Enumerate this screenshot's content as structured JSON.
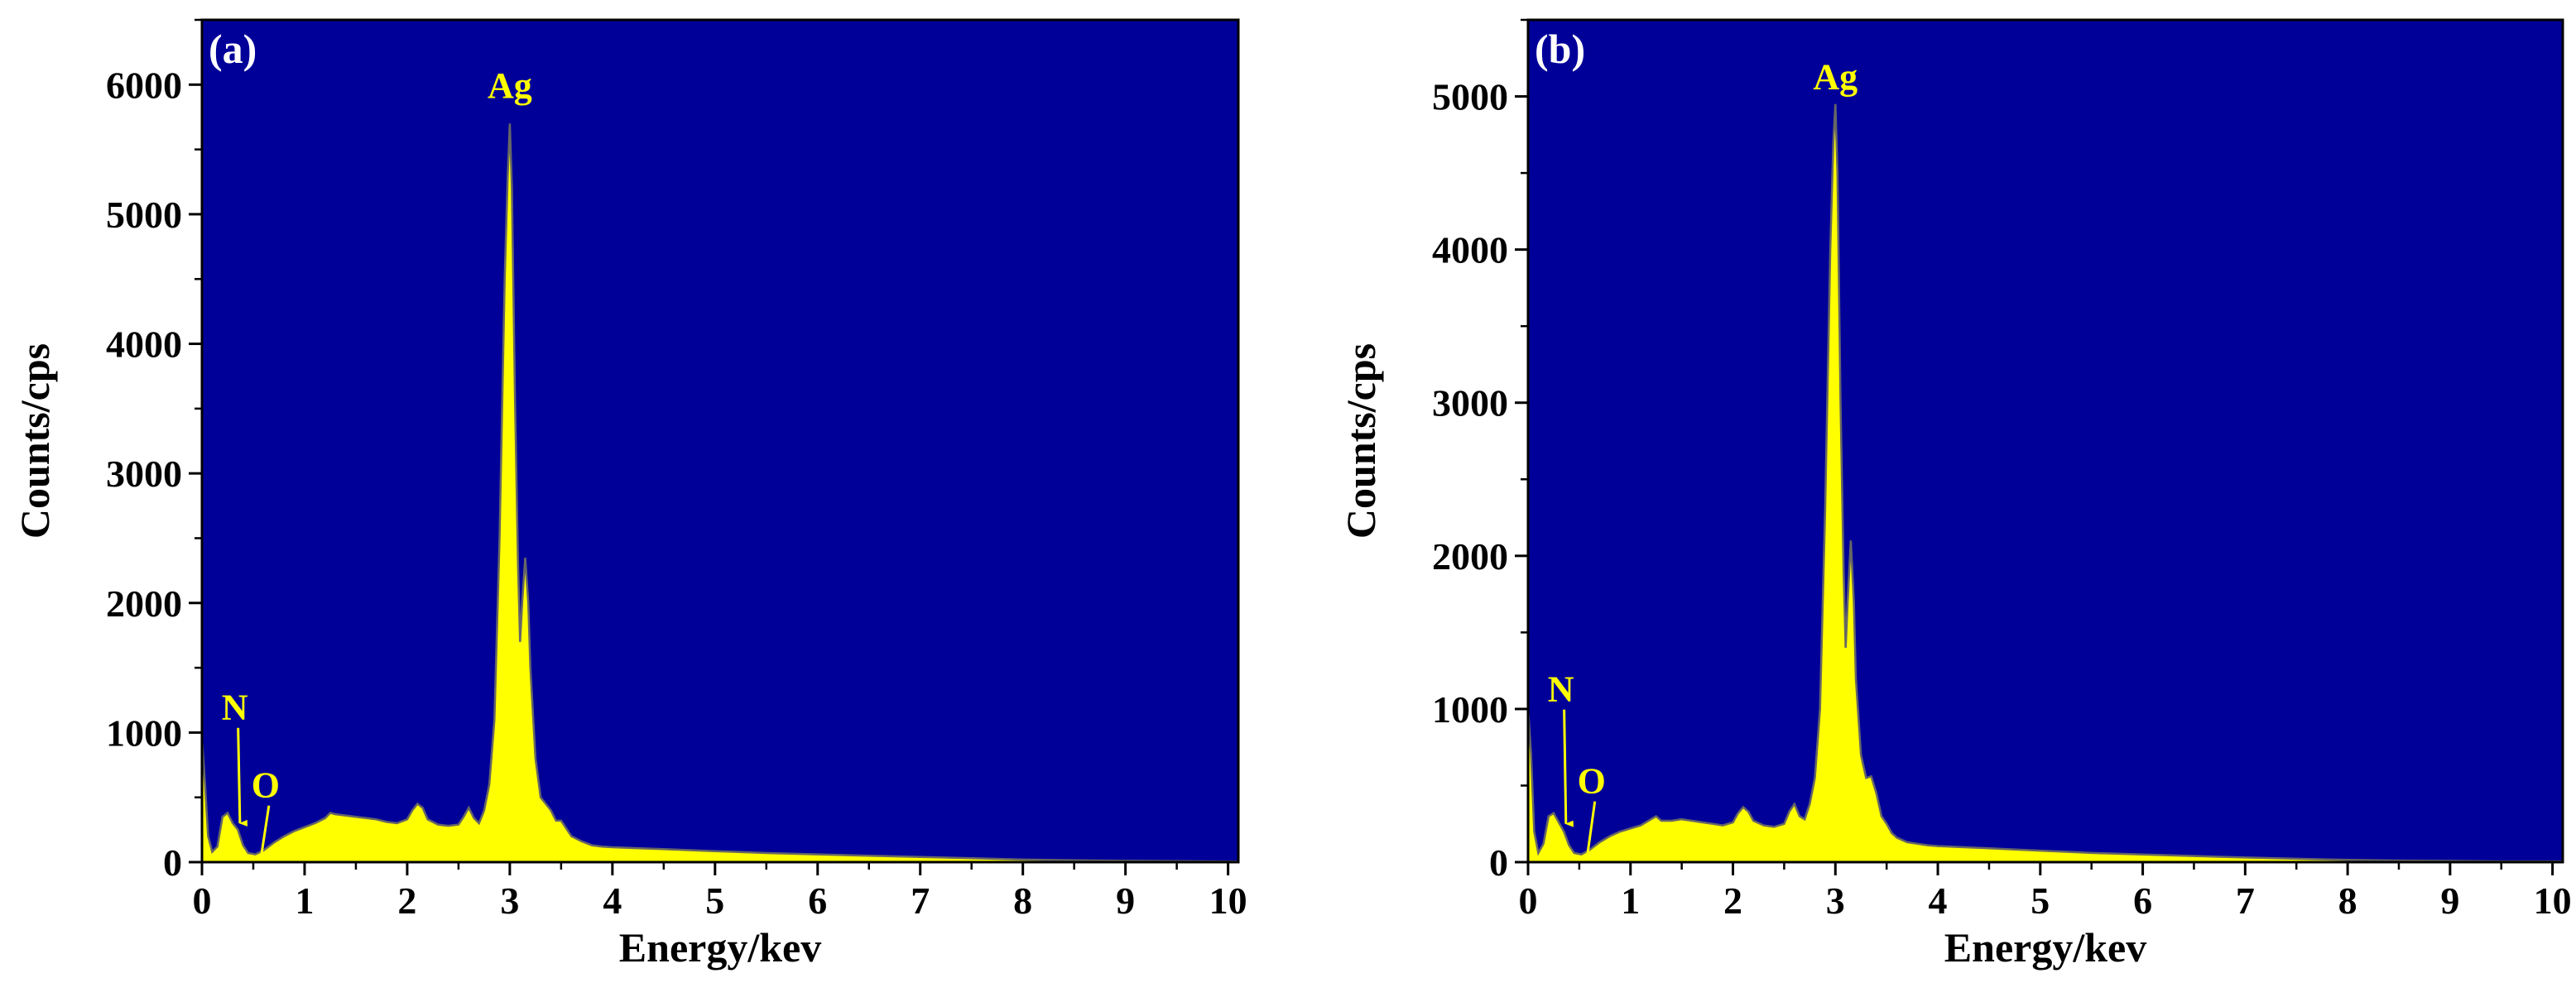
{
  "colors": {
    "plot_background": "#000099",
    "spectrum_fill": "#ffff00",
    "spectrum_outline": "#666666",
    "annotation": "#ffff00",
    "axis": "#000000"
  },
  "chart_data": [
    {
      "panel": "(a)",
      "type": "area",
      "xlabel": "Energy/kev",
      "ylabel": "Counts/cps",
      "xlim": [
        0,
        10.1
      ],
      "ylim": [
        0,
        6500
      ],
      "xticks": [
        0,
        1,
        2,
        3,
        4,
        5,
        6,
        7,
        8,
        9,
        10
      ],
      "yticks": [
        0,
        1000,
        2000,
        3000,
        4000,
        5000,
        6000
      ],
      "grid": false,
      "legend": "none",
      "x": [
        0,
        0.03,
        0.06,
        0.1,
        0.15,
        0.2,
        0.25,
        0.3,
        0.35,
        0.4,
        0.45,
        0.52,
        0.6,
        0.7,
        0.8,
        0.9,
        1.0,
        1.1,
        1.2,
        1.25,
        1.3,
        1.4,
        1.5,
        1.6,
        1.7,
        1.8,
        1.9,
        2.0,
        2.05,
        2.1,
        2.15,
        2.2,
        2.3,
        2.4,
        2.5,
        2.55,
        2.6,
        2.65,
        2.7,
        2.75,
        2.8,
        2.85,
        2.9,
        2.95,
        2.98,
        3.0,
        3.02,
        3.05,
        3.08,
        3.1,
        3.12,
        3.15,
        3.18,
        3.2,
        3.25,
        3.3,
        3.35,
        3.4,
        3.45,
        3.5,
        3.55,
        3.6,
        3.7,
        3.8,
        3.9,
        4.0,
        4.5,
        5.0,
        5.5,
        6.0,
        6.5,
        7.0,
        7.5,
        8.0,
        8.5,
        9.0,
        9.5,
        10.0,
        10.1
      ],
      "y": [
        950,
        600,
        200,
        80,
        120,
        350,
        380,
        300,
        250,
        130,
        70,
        60,
        90,
        150,
        200,
        240,
        270,
        300,
        340,
        380,
        370,
        360,
        350,
        340,
        330,
        310,
        300,
        330,
        400,
        450,
        420,
        330,
        290,
        280,
        290,
        350,
        420,
        340,
        300,
        400,
        600,
        1100,
        2500,
        4500,
        5300,
        5700,
        5200,
        3600,
        2300,
        1700,
        2000,
        2350,
        2000,
        1500,
        800,
        500,
        450,
        400,
        320,
        320,
        260,
        200,
        160,
        130,
        120,
        115,
        100,
        85,
        70,
        60,
        50,
        40,
        30,
        20,
        15,
        10,
        8,
        5,
        5
      ],
      "annotations": [
        {
          "text": "Ag",
          "x": 3.0,
          "y": 5900
        },
        {
          "text": "N",
          "x": 0.32,
          "y": 1100,
          "arrow_to_x": 0.37,
          "arrow_to_y": 300
        },
        {
          "text": "O",
          "x": 0.62,
          "y": 500,
          "arrow_to_x": 0.58,
          "arrow_to_y": 60
        }
      ]
    },
    {
      "panel": "(b)",
      "type": "area",
      "xlabel": "Energy/kev",
      "ylabel": "Counts/cps",
      "xlim": [
        0,
        10.1
      ],
      "ylim": [
        0,
        5500
      ],
      "xticks": [
        0,
        1,
        2,
        3,
        4,
        5,
        6,
        7,
        8,
        9,
        10
      ],
      "yticks": [
        0,
        1000,
        2000,
        3000,
        4000,
        5000
      ],
      "grid": false,
      "legend": "none",
      "x": [
        0,
        0.03,
        0.06,
        0.1,
        0.15,
        0.2,
        0.25,
        0.3,
        0.35,
        0.4,
        0.45,
        0.52,
        0.6,
        0.7,
        0.8,
        0.9,
        1.0,
        1.1,
        1.2,
        1.25,
        1.3,
        1.4,
        1.5,
        1.6,
        1.7,
        1.8,
        1.9,
        2.0,
        2.05,
        2.1,
        2.15,
        2.2,
        2.3,
        2.4,
        2.5,
        2.55,
        2.6,
        2.65,
        2.7,
        2.75,
        2.8,
        2.85,
        2.9,
        2.95,
        2.98,
        3.0,
        3.02,
        3.05,
        3.08,
        3.1,
        3.12,
        3.15,
        3.18,
        3.2,
        3.25,
        3.3,
        3.35,
        3.4,
        3.45,
        3.5,
        3.55,
        3.6,
        3.7,
        3.8,
        3.9,
        4.0,
        4.5,
        5.0,
        5.5,
        6.0,
        6.5,
        7.0,
        7.5,
        8.0,
        8.5,
        9.0,
        9.5,
        10.0,
        10.1
      ],
      "y": [
        1000,
        700,
        200,
        60,
        120,
        300,
        320,
        260,
        200,
        110,
        60,
        50,
        80,
        130,
        170,
        200,
        220,
        240,
        280,
        300,
        270,
        270,
        280,
        270,
        260,
        250,
        240,
        260,
        320,
        360,
        330,
        270,
        240,
        230,
        250,
        330,
        380,
        300,
        280,
        380,
        550,
        1000,
        2300,
        4000,
        4700,
        4950,
        4500,
        3000,
        1900,
        1400,
        1700,
        2100,
        1700,
        1200,
        700,
        550,
        560,
        450,
        300,
        250,
        190,
        160,
        130,
        120,
        110,
        105,
        90,
        75,
        60,
        50,
        40,
        30,
        22,
        15,
        10,
        8,
        5,
        5,
        5
      ],
      "annotations": [
        {
          "text": "Ag",
          "x": 3.0,
          "y": 5050
        },
        {
          "text": "N",
          "x": 0.32,
          "y": 1050,
          "arrow_to_x": 0.37,
          "arrow_to_y": 250
        },
        {
          "text": "O",
          "x": 0.62,
          "y": 450,
          "arrow_to_x": 0.58,
          "arrow_to_y": 50
        }
      ]
    }
  ]
}
